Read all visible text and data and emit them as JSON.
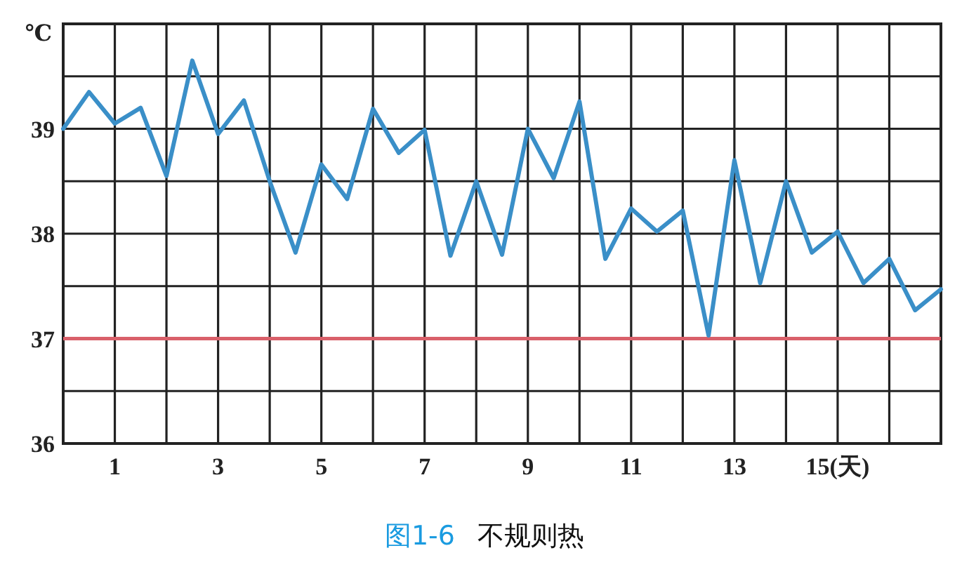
{
  "chart_data": {
    "type": "line",
    "ylabel": "℃",
    "annotations": [
      "图1-6",
      "不规则热"
    ],
    "x": [
      0,
      0.5,
      1,
      1.5,
      2,
      2.5,
      3,
      3.5,
      4,
      4.5,
      5,
      5.5,
      6,
      6.5,
      7,
      7.5,
      8,
      8.5,
      9,
      9.5,
      10,
      10.5,
      11,
      11.5,
      12,
      12.5,
      13,
      13.5,
      14,
      14.5,
      15,
      15.5,
      16,
      16.5,
      17
    ],
    "series": [
      {
        "color": "#3a8fc8",
        "values": [
          39.0,
          39.35,
          39.05,
          39.2,
          38.55,
          39.65,
          38.95,
          39.27,
          38.5,
          37.82,
          38.66,
          38.33,
          39.19,
          38.77,
          38.99,
          37.79,
          38.5,
          37.8,
          39.0,
          38.53,
          39.26,
          37.76,
          38.24,
          38.02,
          38.22,
          37.03,
          38.7,
          37.53,
          38.5,
          37.82,
          38.02,
          37.53,
          37.76,
          37.27,
          37.47
        ]
      }
    ],
    "xlim": [
      0,
      17
    ],
    "xticks": [
      1,
      {
        "value": 2,
        "label": null
      },
      3,
      {
        "value": 4,
        "label": null
      },
      5,
      {
        "value": 6,
        "label": null
      },
      7,
      {
        "value": 8,
        "label": null
      },
      9,
      {
        "value": 10,
        "label": null
      },
      11,
      {
        "value": 12,
        "label": null
      },
      13,
      {
        "value": 14,
        "label": null
      },
      {
        "value": 15,
        "label": "15(天)"
      },
      {
        "value": 16,
        "label": null
      }
    ],
    "ylim": [
      36,
      40
    ],
    "yticks": [
      36,
      {
        "value": 36.5,
        "label": null
      },
      37,
      {
        "value": 37.5,
        "label": null
      },
      38,
      {
        "value": 38.5,
        "label": null
      },
      39,
      {
        "value": 39.5,
        "label": null
      }
    ],
    "ref_lines": [
      {
        "axis": "y",
        "value": 37,
        "color": "#d9606a"
      }
    ],
    "grid": true,
    "marker": "none",
    "line_style": "solid"
  }
}
